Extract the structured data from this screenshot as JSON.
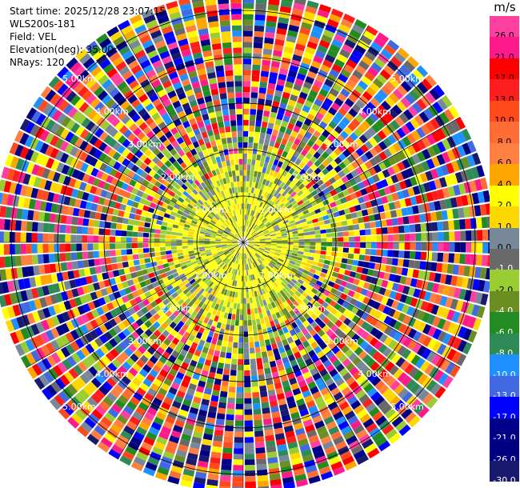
{
  "info": {
    "start_time": "Start time: 2025/12/28 23:07:15",
    "station": "WLS200s-181",
    "field": "Field: VEL",
    "elevation": "Elevation(deg): 35.00",
    "nrays": "NRays: 120"
  },
  "chart_data": {
    "type": "heatmap",
    "projection": "polar-ppi",
    "field": "VEL",
    "units": "m/s",
    "nrays": 120,
    "elevation_deg": 35.0,
    "range_rings_km": [
      1,
      2,
      3,
      4,
      5
    ],
    "max_range_km": 5.4,
    "ring_labels": [
      "1.00km",
      "2.00km",
      "3.00km",
      "4.00km",
      "5.00km"
    ],
    "colorbar": {
      "title": "m/s",
      "ticks": [
        "26.0",
        "21.0",
        "17.0",
        "13.0",
        "10.0",
        "8.0",
        "6.0",
        "4.0",
        "2.0",
        "1.0",
        "0.0",
        "-1.0",
        "-2.0",
        "-4.0",
        "-6.0",
        "-8.0",
        "-10.0",
        "-13.0",
        "-17.0",
        "-21.0",
        "-26.0",
        "-30.0"
      ],
      "colors": [
        "#ff3fa0",
        "#ff1a8c",
        "#ff0000",
        "#ff1e1e",
        "#ff4a1c",
        "#ff6d35",
        "#ff8040",
        "#ffa500",
        "#ffff00",
        "#ffd700",
        "#778899",
        "#696969",
        "#9acd32",
        "#6b8e23",
        "#228b22",
        "#2e8b57",
        "#1e90ff",
        "#4169e1",
        "#0000ff",
        "#00008b",
        "#000080",
        "#191970"
      ]
    }
  }
}
